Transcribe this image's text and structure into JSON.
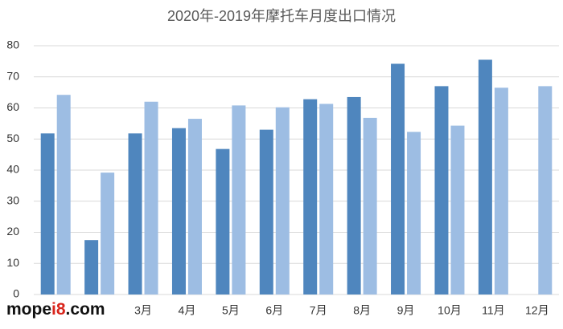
{
  "chart_data": {
    "type": "bar",
    "title": "2020年-2019年摩托车月度出口情况",
    "categories": [
      null,
      null,
      "3月",
      "4月",
      "5月",
      "6月",
      "7月",
      "8月",
      "9月",
      "10月",
      "11月",
      "12月"
    ],
    "series": [
      {
        "color": "#4f86be",
        "values": [
          51.8,
          17.5,
          51.8,
          53.5,
          46.8,
          53,
          62.8,
          63.5,
          74.2,
          67,
          75.5,
          null
        ]
      },
      {
        "color": "#9dbde3",
        "values": [
          64.2,
          39.2,
          62,
          56.5,
          60.8,
          60.2,
          61.3,
          56.8,
          52.3,
          54.3,
          66.5,
          67
        ]
      }
    ],
    "ylim": [
      0,
      80
    ],
    "yticks": [
      0,
      10,
      20,
      30,
      40,
      50,
      60,
      70,
      80
    ],
    "grid": true,
    "watermark": [
      "mope",
      "i8",
      ".com"
    ]
  }
}
